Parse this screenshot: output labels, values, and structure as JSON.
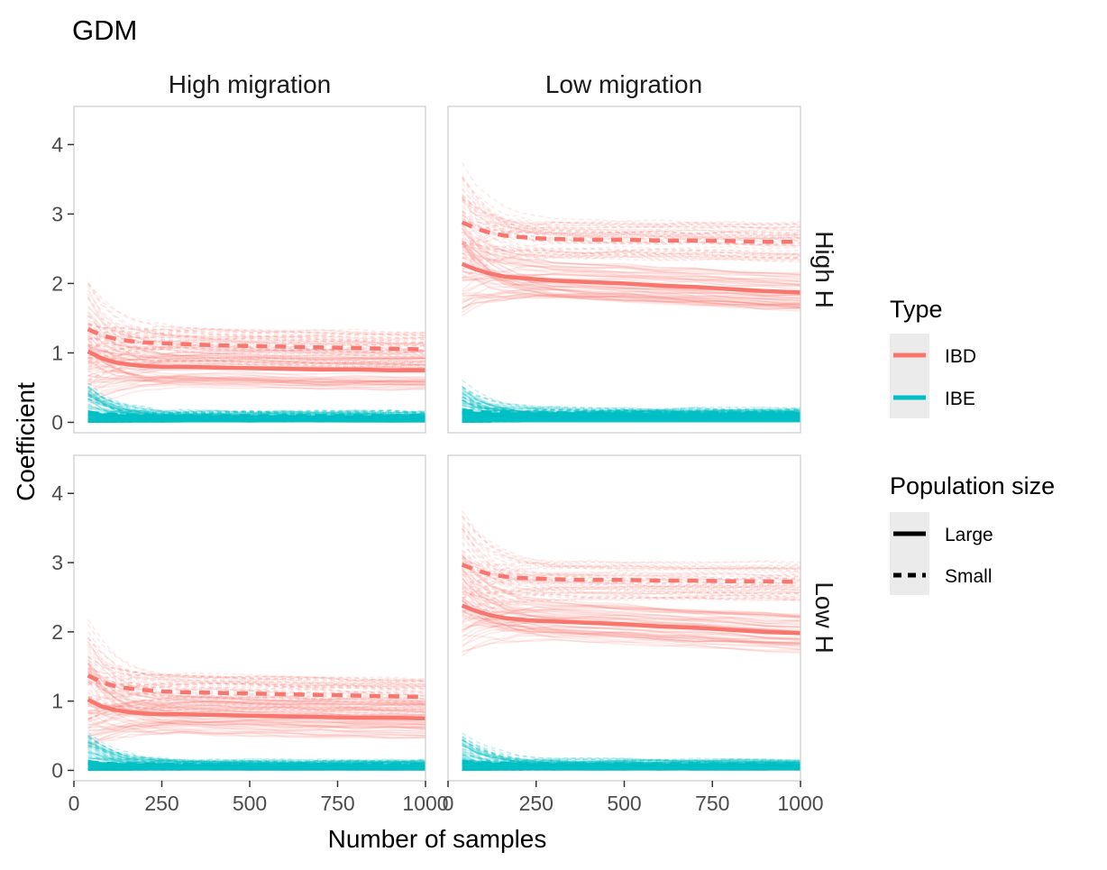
{
  "chart_data": {
    "type": "line",
    "title": "GDM",
    "xlabel": "Number of samples",
    "ylabel": "Coefficient",
    "xlim": [
      0,
      1000
    ],
    "ylim": [
      -0.15,
      4.55
    ],
    "x_ticks": [
      0,
      250,
      500,
      750,
      1000
    ],
    "y_ticks": [
      0,
      1,
      2,
      3,
      4
    ],
    "x_tick_labels": [
      "0",
      "250",
      "500",
      "750",
      "1000"
    ],
    "y_tick_labels": [
      "0",
      "1",
      "2",
      "3",
      "4"
    ],
    "x": [
      40,
      80,
      120,
      160,
      200,
      250,
      300,
      400,
      500,
      600,
      700,
      800,
      900,
      1000
    ],
    "grid": false,
    "facet_columns": [
      "High migration",
      "Low migration"
    ],
    "facet_rows": [
      "High H",
      "Low H"
    ],
    "legend": {
      "position": "right",
      "type_title": "Type",
      "type_entries": [
        {
          "label": "IBD",
          "color": "#F8766D"
        },
        {
          "label": "IBE",
          "color": "#00BFC4"
        }
      ],
      "size_title": "Population size",
      "size_entries": [
        {
          "label": "Large",
          "linetype": "solid"
        },
        {
          "label": "Small",
          "linetype": "dashed"
        }
      ]
    },
    "panels": [
      {
        "column": "High migration",
        "row": "High H",
        "series": [
          {
            "type": "IBD",
            "size": "Large",
            "values": [
              1.02,
              0.92,
              0.86,
              0.83,
              0.81,
              0.8,
              0.8,
              0.79,
              0.78,
              0.77,
              0.76,
              0.76,
              0.75,
              0.75
            ]
          },
          {
            "type": "IBD",
            "size": "Small",
            "values": [
              1.34,
              1.25,
              1.2,
              1.17,
              1.15,
              1.14,
              1.13,
              1.11,
              1.1,
              1.09,
              1.08,
              1.07,
              1.06,
              1.05
            ]
          },
          {
            "type": "IBE",
            "size": "Large",
            "values": [
              0.12,
              0.1,
              0.09,
              0.08,
              0.08,
              0.07,
              0.07,
              0.07,
              0.07,
              0.07,
              0.07,
              0.07,
              0.07,
              0.07
            ]
          },
          {
            "type": "IBE",
            "size": "Small",
            "values": [
              0.14,
              0.12,
              0.11,
              0.1,
              0.1,
              0.09,
              0.09,
              0.09,
              0.09,
              0.09,
              0.09,
              0.09,
              0.09,
              0.09
            ]
          }
        ]
      },
      {
        "column": "Low migration",
        "row": "High H",
        "series": [
          {
            "type": "IBD",
            "size": "Large",
            "values": [
              2.28,
              2.2,
              2.14,
              2.1,
              2.08,
              2.06,
              2.04,
              2.02,
              2.0,
              1.97,
              1.95,
              1.92,
              1.89,
              1.87
            ]
          },
          {
            "type": "IBD",
            "size": "Small",
            "values": [
              2.88,
              2.79,
              2.73,
              2.69,
              2.67,
              2.65,
              2.64,
              2.63,
              2.63,
              2.62,
              2.62,
              2.61,
              2.6,
              2.6
            ]
          },
          {
            "type": "IBE",
            "size": "Large",
            "values": [
              0.14,
              0.12,
              0.11,
              0.11,
              0.1,
              0.1,
              0.1,
              0.1,
              0.1,
              0.1,
              0.1,
              0.1,
              0.1,
              0.1
            ]
          },
          {
            "type": "IBE",
            "size": "Small",
            "values": [
              0.17,
              0.15,
              0.14,
              0.14,
              0.13,
              0.13,
              0.13,
              0.13,
              0.13,
              0.13,
              0.13,
              0.13,
              0.13,
              0.13
            ]
          }
        ]
      },
      {
        "column": "High migration",
        "row": "Low H",
        "series": [
          {
            "type": "IBD",
            "size": "Large",
            "values": [
              1.02,
              0.92,
              0.87,
              0.84,
              0.82,
              0.81,
              0.81,
              0.8,
              0.79,
              0.78,
              0.77,
              0.76,
              0.76,
              0.75
            ]
          },
          {
            "type": "IBD",
            "size": "Small",
            "values": [
              1.37,
              1.27,
              1.21,
              1.18,
              1.16,
              1.14,
              1.13,
              1.12,
              1.11,
              1.1,
              1.09,
              1.08,
              1.07,
              1.06
            ]
          },
          {
            "type": "IBE",
            "size": "Large",
            "values": [
              0.1,
              0.09,
              0.08,
              0.07,
              0.07,
              0.07,
              0.06,
              0.06,
              0.06,
              0.06,
              0.06,
              0.06,
              0.06,
              0.06
            ]
          },
          {
            "type": "IBE",
            "size": "Small",
            "values": [
              0.12,
              0.1,
              0.09,
              0.09,
              0.08,
              0.08,
              0.08,
              0.08,
              0.08,
              0.08,
              0.08,
              0.08,
              0.08,
              0.08
            ]
          }
        ]
      },
      {
        "column": "Low migration",
        "row": "Low H",
        "series": [
          {
            "type": "IBD",
            "size": "Large",
            "values": [
              2.38,
              2.3,
              2.24,
              2.2,
              2.18,
              2.16,
              2.15,
              2.13,
              2.11,
              2.08,
              2.06,
              2.03,
              2.0,
              1.98
            ]
          },
          {
            "type": "IBD",
            "size": "Small",
            "values": [
              2.97,
              2.89,
              2.83,
              2.8,
              2.78,
              2.77,
              2.76,
              2.75,
              2.75,
              2.74,
              2.74,
              2.73,
              2.73,
              2.72
            ]
          },
          {
            "type": "IBE",
            "size": "Large",
            "values": [
              0.1,
              0.09,
              0.08,
              0.08,
              0.08,
              0.07,
              0.07,
              0.07,
              0.07,
              0.07,
              0.07,
              0.07,
              0.07,
              0.07
            ]
          },
          {
            "type": "IBE",
            "size": "Small",
            "values": [
              0.12,
              0.11,
              0.1,
              0.1,
              0.09,
              0.09,
              0.09,
              0.09,
              0.09,
              0.09,
              0.09,
              0.09,
              0.09,
              0.09
            ]
          }
        ]
      }
    ]
  }
}
